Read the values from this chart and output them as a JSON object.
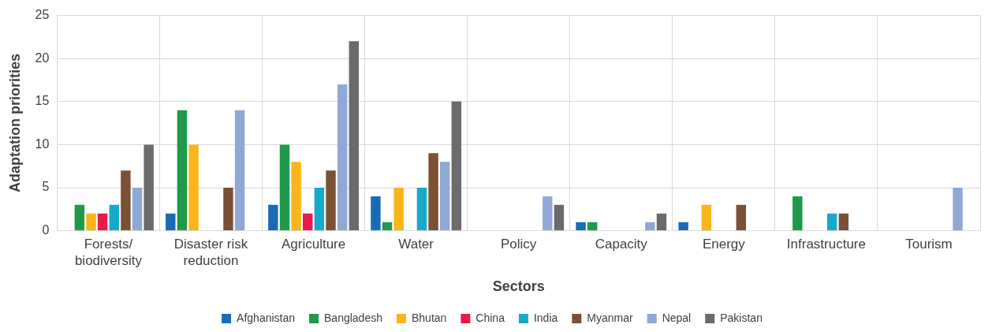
{
  "chart_data": {
    "type": "bar",
    "xlabel": "Sectors",
    "ylabel": "Adaptation priorities",
    "categories": [
      "Forests/ biodiversity",
      "Disaster risk reduction",
      "Agriculture",
      "Water",
      "Policy",
      "Capacity",
      "Energy",
      "Infrastructure",
      "Tourism"
    ],
    "series": [
      {
        "name": "Afghanistan",
        "color": "#1a6bb5",
        "values": [
          0,
          2,
          3,
          4,
          0,
          1,
          1,
          0,
          0
        ]
      },
      {
        "name": "Bangladesh",
        "color": "#1e9a4a",
        "values": [
          3,
          14,
          10,
          1,
          0,
          1,
          0,
          4,
          0
        ]
      },
      {
        "name": "Bhutan",
        "color": "#fbb41a",
        "values": [
          2,
          10,
          8,
          5,
          0,
          0,
          3,
          0,
          0
        ]
      },
      {
        "name": "China",
        "color": "#e8194b",
        "values": [
          2,
          0,
          2,
          0,
          0,
          0,
          0,
          0,
          0
        ]
      },
      {
        "name": "India",
        "color": "#16a9c9",
        "values": [
          3,
          0,
          5,
          5,
          0,
          0,
          0,
          2,
          0
        ]
      },
      {
        "name": "Myanmar",
        "color": "#7b5136",
        "values": [
          7,
          5,
          7,
          9,
          0,
          0,
          3,
          2,
          0
        ]
      },
      {
        "name": "Nepal",
        "color": "#8fa8d6",
        "values": [
          5,
          14,
          17,
          8,
          4,
          1,
          0,
          0,
          5
        ]
      },
      {
        "name": "Pakistan",
        "color": "#6b6b6e",
        "values": [
          10,
          0,
          22,
          15,
          3,
          2,
          0,
          0,
          0
        ]
      }
    ],
    "ylim": [
      0,
      25
    ],
    "yticks": [
      0,
      5,
      10,
      15,
      20,
      25
    ],
    "grid": true,
    "legend": "bottom"
  }
}
